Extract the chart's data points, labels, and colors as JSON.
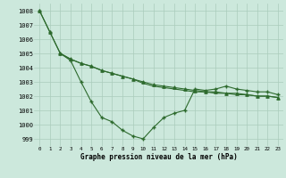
{
  "x": [
    0,
    1,
    2,
    3,
    4,
    5,
    6,
    7,
    8,
    9,
    10,
    11,
    12,
    13,
    14,
    15,
    16,
    17,
    18,
    19,
    20,
    21,
    22,
    23
  ],
  "line1": [
    1008.0,
    1006.5,
    1005.0,
    1004.5,
    1003.0,
    1001.6,
    1000.5,
    1000.2,
    999.6,
    999.2,
    999.0,
    999.8,
    1000.5,
    1000.8,
    1001.0,
    1002.5,
    1002.4,
    1002.5,
    1002.7,
    1002.5,
    1002.4,
    1002.3,
    1002.3,
    1002.1
  ],
  "line2": [
    1008.0,
    1006.5,
    1005.0,
    1004.6,
    1004.3,
    1004.1,
    1003.8,
    1003.6,
    1003.4,
    1003.2,
    1003.0,
    1002.8,
    1002.7,
    1002.6,
    1002.5,
    1002.4,
    1002.3,
    1002.3,
    1002.2,
    1002.2,
    1002.1,
    1002.0,
    1002.0,
    1001.9
  ],
  "line3": [
    null,
    null,
    1005.0,
    1004.6,
    1004.3,
    1004.1,
    1003.8,
    1003.6,
    1003.4,
    1003.2,
    1002.9,
    1002.7,
    1002.6,
    1002.5,
    1002.4,
    1002.3,
    1002.3,
    1002.2,
    1002.2,
    1002.1,
    1002.1,
    1002.0,
    1002.0,
    1001.9
  ],
  "xlim": [
    -0.5,
    23.5
  ],
  "ylim": [
    998.5,
    1008.5
  ],
  "yticks": [
    999,
    1000,
    1001,
    1002,
    1003,
    1004,
    1005,
    1006,
    1007,
    1008
  ],
  "xticks": [
    0,
    1,
    2,
    3,
    4,
    5,
    6,
    7,
    8,
    9,
    10,
    11,
    12,
    13,
    14,
    15,
    16,
    17,
    18,
    19,
    20,
    21,
    22,
    23
  ],
  "xlabel": "Graphe pression niveau de la mer (hPa)",
  "line_color": "#2d6a2d",
  "bg_color": "#cce8dc",
  "grid_color": "#aaccbb"
}
